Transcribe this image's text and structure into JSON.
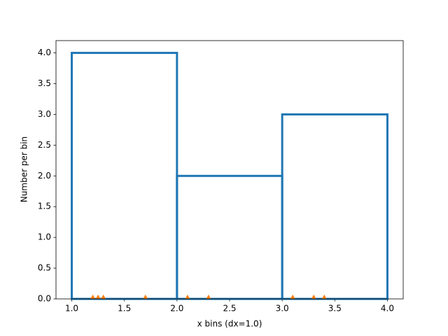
{
  "chart_data": {
    "type": "histogram",
    "xlabel": "x bins (dx=1.0)",
    "ylabel": "Number per bin",
    "bins": [
      1.0,
      2.0,
      3.0,
      4.0
    ],
    "values": [
      4,
      2,
      3
    ],
    "color": "#1f77b4",
    "points": {
      "x": [
        1.2,
        1.25,
        1.3,
        1.7,
        2.1,
        2.3,
        3.1,
        3.3,
        3.4
      ],
      "values": [
        0.03,
        0.03,
        0.03,
        0.03,
        0.03,
        0.03,
        0.03,
        0.03,
        0.03
      ],
      "color": "#ff7f0e"
    },
    "xlim": [
      0.85,
      4.15
    ],
    "ylim": [
      0,
      4.2
    ],
    "xticks": [
      {
        "value": 1.0,
        "label": "1.0"
      },
      {
        "value": 1.5,
        "label": "1.5"
      },
      {
        "value": 2.0,
        "label": "2.0"
      },
      {
        "value": 2.5,
        "label": "2.5"
      },
      {
        "value": 3.0,
        "label": "3.0"
      },
      {
        "value": 3.5,
        "label": "3.5"
      },
      {
        "value": 4.0,
        "label": "4.0"
      }
    ],
    "yticks": [
      {
        "value": 0,
        "label": "0.0"
      },
      {
        "value": 0.5,
        "label": "0.5"
      },
      {
        "value": 1.0,
        "label": "1.0"
      },
      {
        "value": 1.5,
        "label": "1.5"
      },
      {
        "value": 2.0,
        "label": "2.0"
      },
      {
        "value": 2.5,
        "label": "2.5"
      },
      {
        "value": 3.0,
        "label": "3.0"
      },
      {
        "value": 3.5,
        "label": "3.5"
      },
      {
        "value": 4.0,
        "label": "4.0"
      }
    ]
  }
}
